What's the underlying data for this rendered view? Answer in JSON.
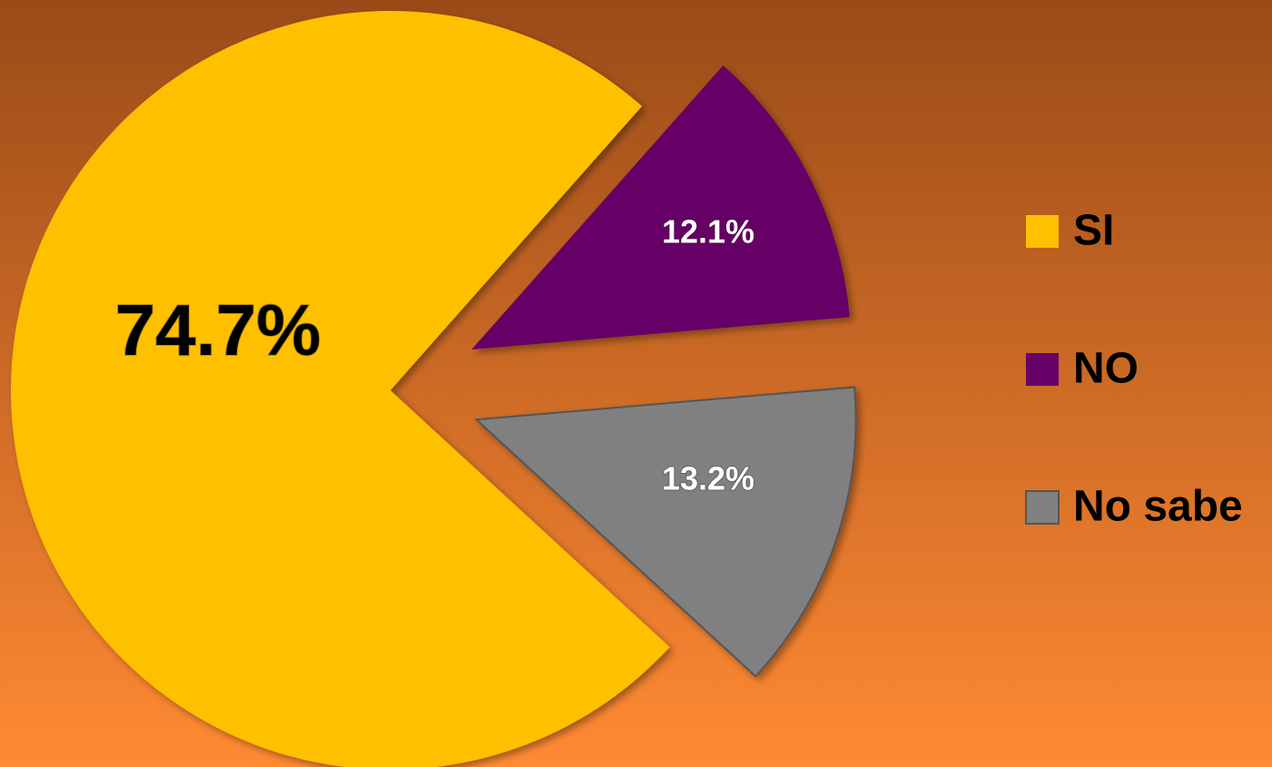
{
  "chart_data": {
    "type": "pie",
    "categories": [
      "SI",
      "NO",
      "No sabe"
    ],
    "values": [
      74.7,
      12.1,
      13.2
    ],
    "value_labels": [
      "74.7%",
      "12.1%",
      "13.2%"
    ],
    "colors": [
      "#ffc000",
      "#660066",
      "#808080"
    ],
    "legend": "right"
  }
}
